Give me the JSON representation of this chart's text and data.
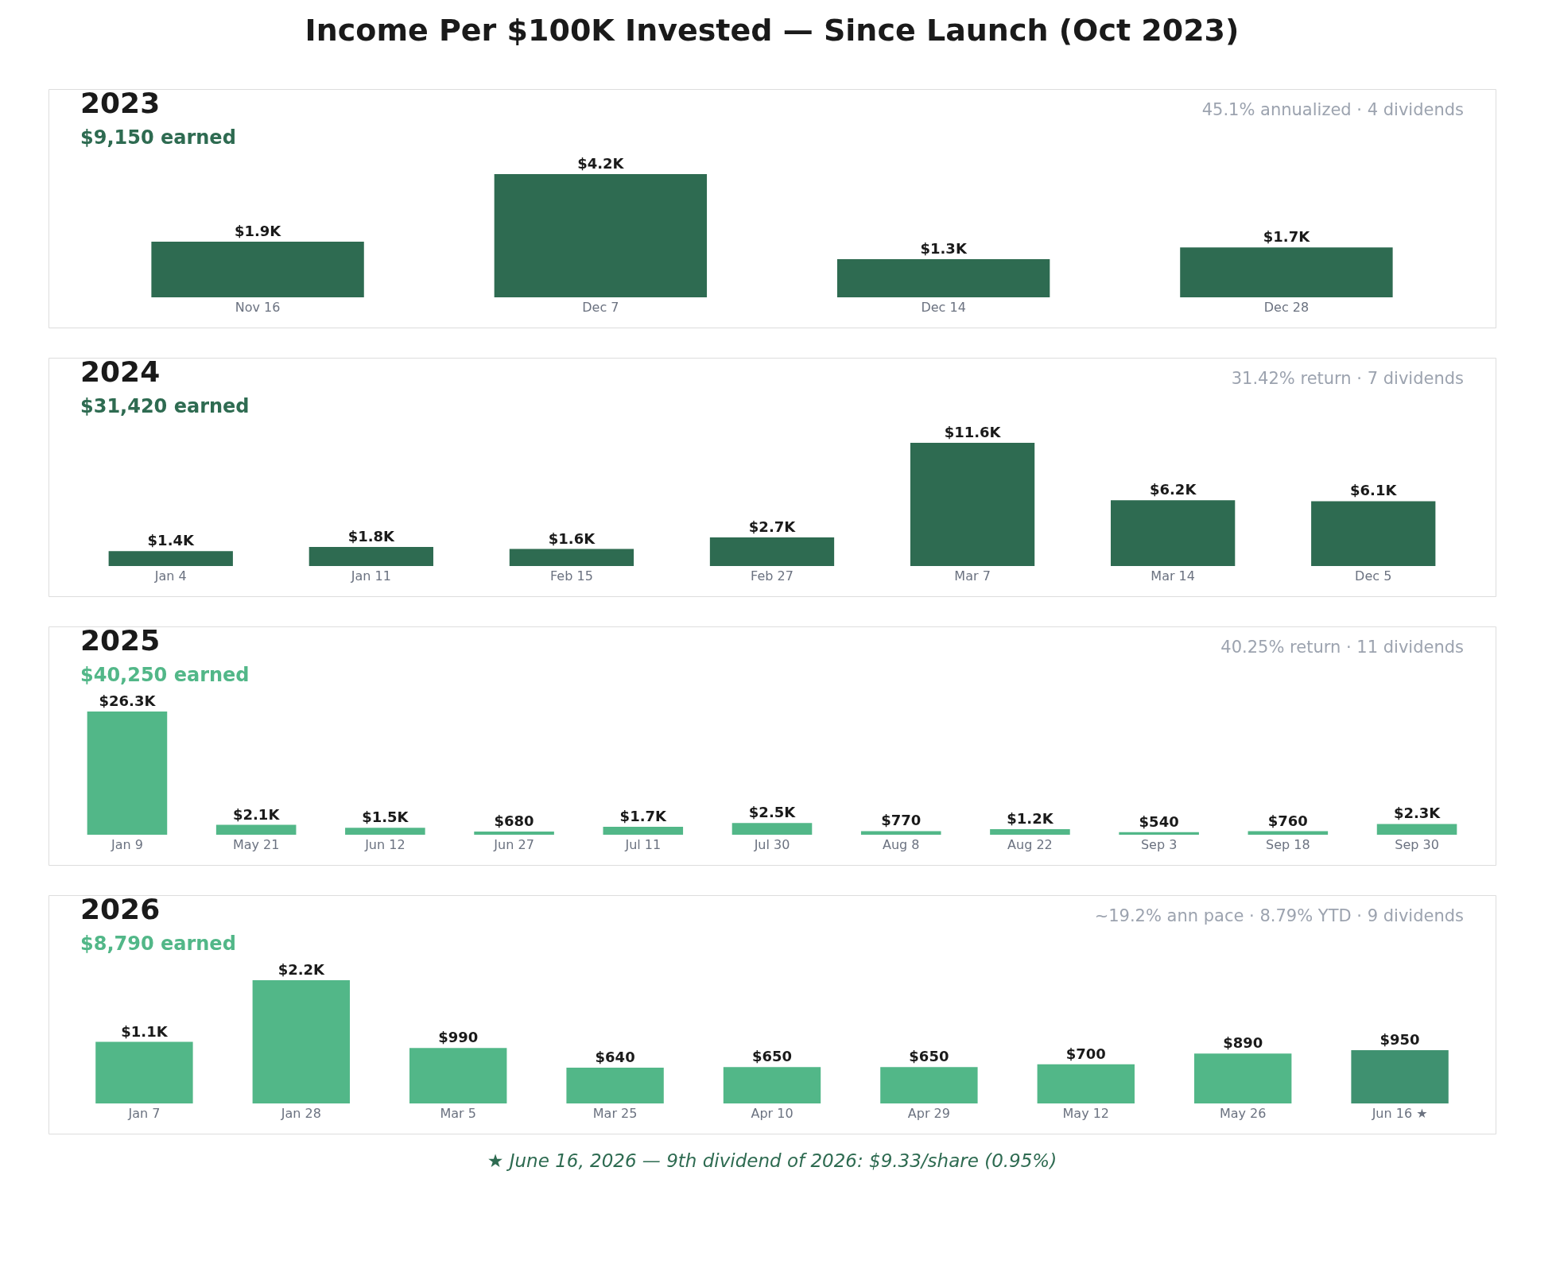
{
  "chart_data": [
    {
      "type": "bar",
      "title": "2023",
      "subtitle": "$9,150 earned",
      "annotations": [
        "45.1% annualized  ·  4 dividends",
        "Income Per $100K Invested  —  Since Launch (Oct 2023)"
      ],
      "categories": [
        "Nov 16",
        "Dec 7",
        "Dec 14",
        "Dec 28"
      ],
      "values": [
        1900,
        4200,
        1300,
        1700
      ],
      "value_labels": [
        "$1.9K",
        "$4.2K",
        "$1.3K",
        "$1.7K"
      ],
      "colors": [
        "#2e6b51",
        "#2e6b51",
        "#2e6b51",
        "#2e6b51"
      ]
    },
    {
      "type": "bar",
      "title": "2024",
      "subtitle": "$31,420 earned",
      "annotations": [
        "31.42% return  ·  7 dividends"
      ],
      "categories": [
        "Jan 4",
        "Jan 11",
        "Feb 15",
        "Feb 27",
        "Mar 7",
        "Mar 14",
        "Dec 5"
      ],
      "values": [
        1400,
        1800,
        1600,
        2700,
        11600,
        6200,
        6100
      ],
      "value_labels": [
        "$1.4K",
        "$1.8K",
        "$1.6K",
        "$2.7K",
        "$11.6K",
        "$6.2K",
        "$6.1K"
      ],
      "colors": [
        "#2e6b51",
        "#2e6b51",
        "#2e6b51",
        "#2e6b51",
        "#2e6b51",
        "#2e6b51",
        "#2e6b51"
      ]
    },
    {
      "type": "bar",
      "title": "2025",
      "subtitle": "$40,250 earned",
      "annotations": [
        "40.25% return  ·  11 dividends"
      ],
      "categories": [
        "Jan 9",
        "May 21",
        "Jun 12",
        "Jun 27",
        "Jul 11",
        "Jul 30",
        "Aug 8",
        "Aug 22",
        "Sep 3",
        "Sep 18",
        "Sep 30"
      ],
      "values": [
        26300,
        2100,
        1500,
        680,
        1700,
        2500,
        770,
        1200,
        540,
        760,
        2300
      ],
      "value_labels": [
        "$26.3K",
        "$2.1K",
        "$1.5K",
        "$680",
        "$1.7K",
        "$2.5K",
        "$770",
        "$1.2K",
        "$540",
        "$760",
        "$2.3K"
      ],
      "colors": [
        "#52b788",
        "#52b788",
        "#52b788",
        "#52b788",
        "#52b788",
        "#52b788",
        "#52b788",
        "#52b788",
        "#52b788",
        "#52b788",
        "#52b788"
      ]
    },
    {
      "type": "bar",
      "title": "2026",
      "subtitle": "$8,790 earned",
      "annotations": [
        "~19.2% ann pace  ·  8.79% YTD  ·  9 dividends",
        "★ June 16, 2026  —  9th dividend of 2026: $9.33/share (0.95%)"
      ],
      "categories": [
        "Jan 7",
        "Jan 28",
        "Mar 5",
        "Mar 25",
        "Apr 10",
        "Apr 29",
        "May 12",
        "May 26",
        "Jun 16 ★"
      ],
      "values": [
        1100,
        2200,
        990,
        640,
        650,
        650,
        700,
        890,
        950
      ],
      "value_labels": [
        "$1.1K",
        "$2.2K",
        "$990",
        "$640",
        "$650",
        "$650",
        "$700",
        "$890",
        "$950"
      ],
      "colors": [
        "#52b788",
        "#52b788",
        "#52b788",
        "#52b788",
        "#52b788",
        "#52b788",
        "#52b788",
        "#52b788",
        "#3f9170"
      ]
    }
  ]
}
